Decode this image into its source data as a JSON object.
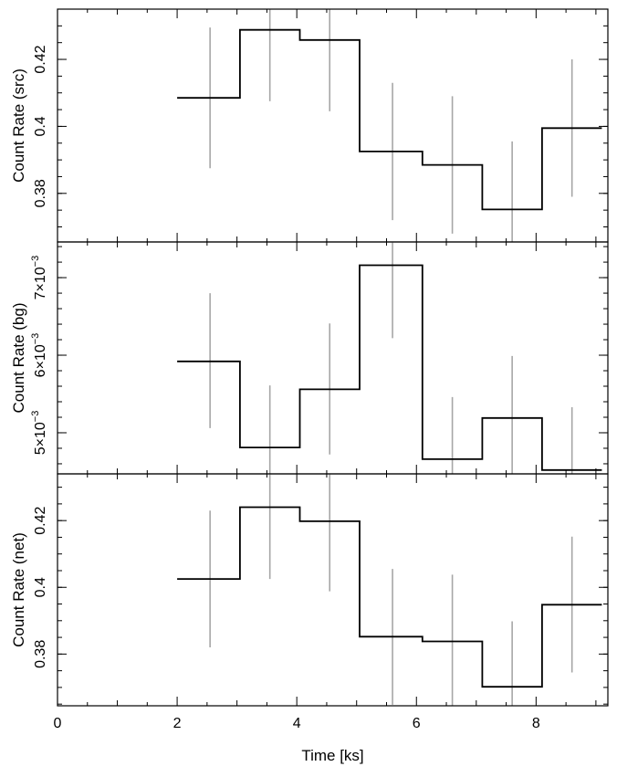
{
  "chart_data": [
    {
      "type": "step",
      "ylabel": "Count Rate (src)",
      "xlim": [
        0,
        9.2
      ],
      "ylim": [
        0.3655,
        0.435
      ],
      "x_ticks_major": [
        0,
        2,
        4,
        6,
        8
      ],
      "y_ticks": [
        {
          "value": 0.38,
          "label": "0.38"
        },
        {
          "value": 0.4,
          "label": "0.4"
        },
        {
          "value": 0.42,
          "label": "0.42"
        }
      ],
      "y_minor_step": 0.005,
      "bins": [
        {
          "x0": 2.0,
          "x1": 3.05,
          "xc": 2.55,
          "y": 0.4085,
          "ylo": 0.3875,
          "yhi": 0.4295
        },
        {
          "x0": 3.05,
          "x1": 4.05,
          "xc": 3.55,
          "y": 0.4288,
          "ylo": 0.4075,
          "yhi": 0.45
        },
        {
          "x0": 4.05,
          "x1": 5.05,
          "xc": 4.55,
          "y": 0.4258,
          "ylo": 0.4045,
          "yhi": 0.447
        },
        {
          "x0": 5.05,
          "x1": 6.1,
          "xc": 5.6,
          "y": 0.3925,
          "ylo": 0.372,
          "yhi": 0.413
        },
        {
          "x0": 6.1,
          "x1": 7.1,
          "xc": 6.6,
          "y": 0.3885,
          "ylo": 0.368,
          "yhi": 0.409
        },
        {
          "x0": 7.1,
          "x1": 8.1,
          "xc": 7.6,
          "y": 0.3752,
          "ylo": 0.355,
          "yhi": 0.3955
        },
        {
          "x0": 8.1,
          "x1": 9.1,
          "xc": 8.6,
          "y": 0.3995,
          "ylo": 0.379,
          "yhi": 0.42
        }
      ]
    },
    {
      "type": "step",
      "ylabel": "Count Rate (bg)",
      "xlim": [
        0,
        9.2
      ],
      "ylim": [
        0.00447,
        0.00746
      ],
      "x_ticks_major": [
        0,
        2,
        4,
        6,
        8
      ],
      "y_ticks": [
        {
          "value": 0.005,
          "label": "5×10",
          "exp": "−3"
        },
        {
          "value": 0.006,
          "label": "6×10",
          "exp": "−3"
        },
        {
          "value": 0.007,
          "label": "7×10",
          "exp": "−3"
        }
      ],
      "y_minor_step": 0.0002,
      "bins": [
        {
          "x0": 2.0,
          "x1": 3.05,
          "xc": 2.55,
          "y": 0.00592,
          "ylo": 0.00506,
          "yhi": 0.0068
        },
        {
          "x0": 3.05,
          "x1": 4.05,
          "xc": 3.55,
          "y": 0.00481,
          "ylo": 0.004,
          "yhi": 0.00561
        },
        {
          "x0": 4.05,
          "x1": 5.05,
          "xc": 4.55,
          "y": 0.00556,
          "ylo": 0.00472,
          "yhi": 0.00641
        },
        {
          "x0": 5.05,
          "x1": 6.1,
          "xc": 5.6,
          "y": 0.00716,
          "ylo": 0.00622,
          "yhi": 0.0081
        },
        {
          "x0": 6.1,
          "x1": 7.1,
          "xc": 6.6,
          "y": 0.00466,
          "ylo": 0.00385,
          "yhi": 0.00546
        },
        {
          "x0": 7.1,
          "x1": 8.1,
          "xc": 7.6,
          "y": 0.00519,
          "ylo": 0.0044,
          "yhi": 0.00599
        },
        {
          "x0": 8.1,
          "x1": 9.1,
          "xc": 8.6,
          "y": 0.00452,
          "ylo": 0.00371,
          "yhi": 0.00533
        }
      ]
    },
    {
      "type": "step",
      "ylabel": "Count Rate (net)",
      "xlabel": "Time [ks]",
      "xlim": [
        0,
        9.2
      ],
      "ylim": [
        0.3645,
        0.434
      ],
      "x_ticks_major": [
        0,
        2,
        4,
        6,
        8
      ],
      "x_tick_labels": [
        "0",
        "2",
        "4",
        "6",
        "8"
      ],
      "y_ticks": [
        {
          "value": 0.38,
          "label": "0.38"
        },
        {
          "value": 0.4,
          "label": "0.4"
        },
        {
          "value": 0.42,
          "label": "0.42"
        }
      ],
      "y_minor_step": 0.005,
      "bins": [
        {
          "x0": 2.0,
          "x1": 3.05,
          "xc": 2.55,
          "y": 0.4025,
          "ylo": 0.382,
          "yhi": 0.423
        },
        {
          "x0": 3.05,
          "x1": 4.05,
          "xc": 3.55,
          "y": 0.424,
          "ylo": 0.4025,
          "yhi": 0.4455
        },
        {
          "x0": 4.05,
          "x1": 5.05,
          "xc": 4.55,
          "y": 0.4198,
          "ylo": 0.3988,
          "yhi": 0.4408
        },
        {
          "x0": 5.05,
          "x1": 6.1,
          "xc": 5.6,
          "y": 0.3852,
          "ylo": 0.3648,
          "yhi": 0.4055
        },
        {
          "x0": 6.1,
          "x1": 7.1,
          "xc": 6.6,
          "y": 0.3838,
          "ylo": 0.3638,
          "yhi": 0.4038
        },
        {
          "x0": 7.1,
          "x1": 8.1,
          "xc": 7.6,
          "y": 0.3702,
          "ylo": 0.3505,
          "yhi": 0.3898
        },
        {
          "x0": 8.1,
          "x1": 9.1,
          "xc": 8.6,
          "y": 0.3948,
          "ylo": 0.3745,
          "yhi": 0.4152
        }
      ]
    }
  ]
}
